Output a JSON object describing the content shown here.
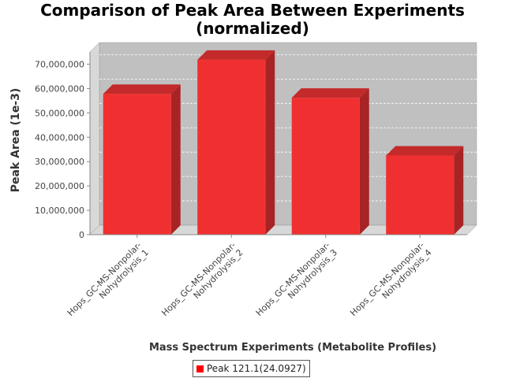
{
  "chart_data": {
    "type": "bar",
    "title_line1": "Comparison of Peak Area Between Experiments",
    "title_line2": "(normalized)",
    "xlabel": "Mass Spectrum Experiments (Metabolite Profiles)",
    "ylabel": "Peak Area (1e-3)",
    "categories": [
      [
        "Hops_GC-MS-Nonpolar-",
        "Nohydrolysis_1"
      ],
      [
        "Hops_GC-MS-Nonpolar-",
        "Nohydrolysis_2"
      ],
      [
        "Hops_GC-MS-Nonpolar-",
        "Nohydrolysis_3"
      ],
      [
        "Hops_GC-MS-Nonpolar-",
        "Nohydrolysis_4"
      ]
    ],
    "series": [
      {
        "name": "Peak 121.1(24.0927)",
        "values": [
          57800000,
          71800000,
          56200000,
          32500000
        ]
      }
    ],
    "ylim": [
      0,
      75000000
    ],
    "yticks": [
      0,
      10000000,
      20000000,
      30000000,
      40000000,
      50000000,
      60000000,
      70000000
    ],
    "ytick_labels": [
      "0",
      "10,000,000",
      "20,000,000",
      "30,000,000",
      "40,000,000",
      "50,000,000",
      "60,000,000",
      "70,000,000"
    ],
    "grid": true,
    "legend_position": "bottom-center",
    "colors": {
      "bar": "#f03030",
      "bar_side": "#a82424",
      "bar_top": "#c42a2a",
      "plot_bg": "#c0c0c0",
      "wall": "#d8d8d8"
    }
  }
}
